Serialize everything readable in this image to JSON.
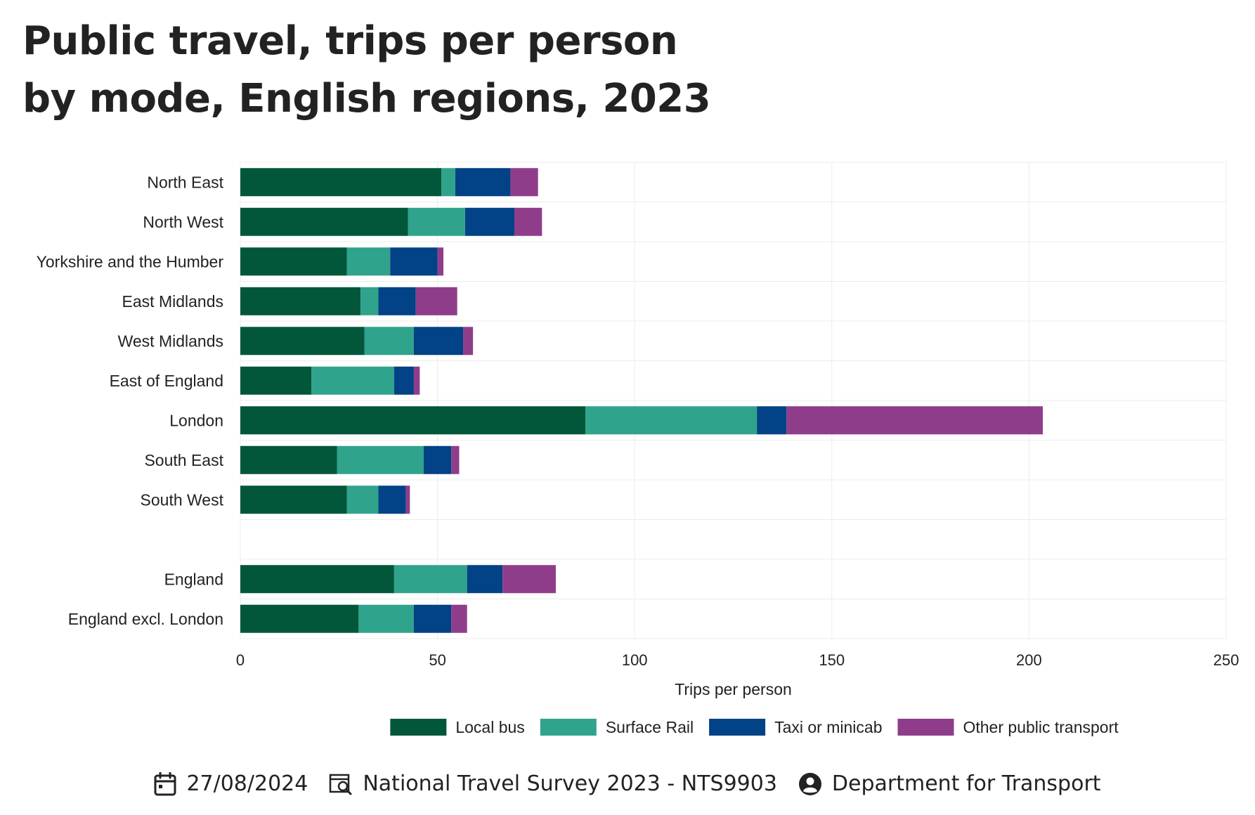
{
  "title": {
    "line1": "Public travel, trips per person",
    "line2": "by mode, English regions, 2023"
  },
  "chart_data": {
    "type": "bar",
    "orientation": "horizontal",
    "stacked": true,
    "categories": [
      "North East",
      "North West",
      "Yorkshire and the Humber",
      "East Midlands",
      "West Midlands",
      "East of England",
      "London",
      "South East",
      "South West",
      "",
      "England",
      "England excl. London"
    ],
    "series": [
      {
        "name": "Local bus",
        "color": "#02573A",
        "values": [
          51,
          42.5,
          27,
          30.5,
          31.5,
          18,
          87.5,
          24.5,
          27,
          null,
          39,
          30
        ]
      },
      {
        "name": "Surface Rail",
        "color": "#30A38C",
        "values": [
          3.5,
          14.5,
          11,
          4.5,
          12.5,
          21,
          43.5,
          22,
          8,
          null,
          18.5,
          14
        ]
      },
      {
        "name": "Taxi or minicab",
        "color": "#024286",
        "values": [
          14,
          12.5,
          12,
          9.5,
          12.5,
          5,
          7.5,
          7,
          7,
          null,
          9,
          9.5
        ]
      },
      {
        "name": "Other public transport",
        "color": "#8F3D8A",
        "values": [
          7,
          7,
          1.5,
          10.5,
          2.5,
          1.5,
          65,
          2,
          1,
          null,
          13.5,
          4
        ]
      }
    ],
    "xlabel": "Trips per person",
    "xlim": [
      0,
      250
    ],
    "xticks": [
      0,
      50,
      100,
      150,
      200,
      250
    ],
    "grid": true,
    "legend_position": "bottom"
  },
  "footer": {
    "date": "27/08/2024",
    "source": "National Travel Survey 2023 - NTS9903",
    "publisher": "Department for Transport"
  }
}
